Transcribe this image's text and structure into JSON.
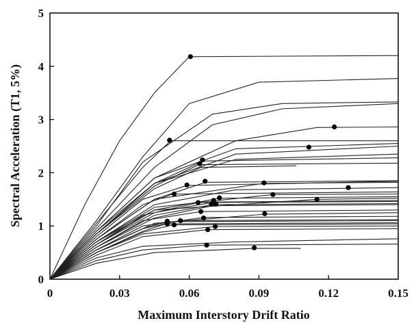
{
  "chart_data": {
    "type": "line",
    "title": "",
    "xlabel": "Maximum Interstory Drift Ratio",
    "ylabel": "Spectral Acceleration (T1, 5%)",
    "xlim": [
      0,
      0.15
    ],
    "ylim": [
      0,
      5
    ],
    "xticks": [
      "0",
      "0.03",
      "0.06",
      "0.09",
      "0.12",
      "0.15"
    ],
    "yticks": [
      "0",
      "1",
      "2",
      "3",
      "4",
      "5"
    ],
    "grid": false,
    "legend": "none",
    "colors": {
      "line": "#222222",
      "marker": "#000000",
      "axis": "#111111"
    },
    "series": [
      {
        "x": [
          0,
          0.015,
          0.03,
          0.045,
          0.06,
          0.15
        ],
        "y": [
          0,
          1.4,
          2.6,
          3.5,
          4.18,
          4.2
        ],
        "collapse": [
          0.0605,
          4.18
        ]
      },
      {
        "x": [
          0,
          0.02,
          0.04,
          0.06,
          0.09,
          0.15
        ],
        "y": [
          0,
          1.1,
          2.3,
          3.3,
          3.7,
          3.77
        ]
      },
      {
        "x": [
          0,
          0.02,
          0.04,
          0.07,
          0.1,
          0.15
        ],
        "y": [
          0,
          1.0,
          2.2,
          3.1,
          3.3,
          3.33
        ]
      },
      {
        "x": [
          0,
          0.02,
          0.045,
          0.07,
          0.1,
          0.15
        ],
        "y": [
          0,
          0.95,
          2.1,
          2.9,
          3.2,
          3.3
        ]
      },
      {
        "x": [
          0,
          0.02,
          0.045,
          0.08,
          0.115,
          0.15
        ],
        "y": [
          0,
          0.9,
          1.9,
          2.6,
          2.85,
          2.86
        ],
        "collapse": [
          0.1225,
          2.86
        ]
      },
      {
        "x": [
          0,
          0.02,
          0.04,
          0.052,
          0.15
        ],
        "y": [
          0,
          1.05,
          2.1,
          2.6,
          2.6
        ],
        "collapse": [
          0.0515,
          2.61
        ]
      },
      {
        "x": [
          0,
          0.02,
          0.045,
          0.08,
          0.15
        ],
        "y": [
          0,
          0.9,
          1.9,
          2.45,
          2.55
        ]
      },
      {
        "x": [
          0,
          0.02,
          0.045,
          0.08,
          0.15
        ],
        "y": [
          0,
          0.85,
          1.8,
          2.35,
          2.5
        ],
        "collapse": [
          0.1115,
          2.48
        ]
      },
      {
        "x": [
          0,
          0.02,
          0.045,
          0.08,
          0.15
        ],
        "y": [
          0,
          0.85,
          1.8,
          2.25,
          2.35
        ]
      },
      {
        "x": [
          0,
          0.02,
          0.045,
          0.066,
          0.15
        ],
        "y": [
          0,
          0.9,
          1.8,
          2.22,
          2.28
        ],
        "collapse": [
          0.0657,
          2.24
        ]
      },
      {
        "x": [
          0,
          0.02,
          0.045,
          0.064,
          0.15
        ],
        "y": [
          0,
          0.85,
          1.75,
          2.15,
          2.18
        ],
        "collapse": [
          0.0645,
          2.17
        ]
      },
      {
        "x": [
          0,
          0.02,
          0.045,
          0.065,
          0.106
        ],
        "y": [
          0,
          0.85,
          1.7,
          2.1,
          2.13
        ]
      },
      {
        "x": [
          0,
          0.02,
          0.04,
          0.059,
          0.15
        ],
        "y": [
          0,
          0.8,
          1.5,
          1.76,
          1.84
        ],
        "collapse": [
          0.059,
          1.77
        ]
      },
      {
        "x": [
          0,
          0.02,
          0.045,
          0.067,
          0.15
        ],
        "y": [
          0,
          0.75,
          1.5,
          1.82,
          1.85
        ],
        "collapse": [
          0.0668,
          1.84
        ]
      },
      {
        "x": [
          0,
          0.02,
          0.045,
          0.092,
          0.15
        ],
        "y": [
          0,
          0.75,
          1.5,
          1.8,
          1.82
        ],
        "collapse": [
          0.0922,
          1.81
        ]
      },
      {
        "x": [
          0,
          0.02,
          0.045,
          0.08,
          0.15
        ],
        "y": [
          0,
          0.7,
          1.4,
          1.68,
          1.72
        ],
        "collapse": [
          0.1285,
          1.72
        ]
      },
      {
        "x": [
          0,
          0.02,
          0.04,
          0.053,
          0.15
        ],
        "y": [
          0,
          0.75,
          1.4,
          1.6,
          1.64
        ],
        "collapse": [
          0.0535,
          1.6
        ]
      },
      {
        "x": [
          0,
          0.02,
          0.045,
          0.096,
          0.15
        ],
        "y": [
          0,
          0.7,
          1.35,
          1.59,
          1.6
        ],
        "collapse": [
          0.096,
          1.59
        ]
      },
      {
        "x": [
          0,
          0.02,
          0.045,
          0.073,
          0.15
        ],
        "y": [
          0,
          0.7,
          1.3,
          1.52,
          1.55
        ],
        "collapse": [
          0.073,
          1.53
        ]
      },
      {
        "x": [
          0,
          0.02,
          0.045,
          0.115,
          0.15
        ],
        "y": [
          0,
          0.65,
          1.3,
          1.5,
          1.52
        ],
        "collapse": [
          0.115,
          1.5
        ]
      },
      {
        "x": [
          0,
          0.02,
          0.045,
          0.071,
          0.15
        ],
        "y": [
          0,
          0.65,
          1.25,
          1.45,
          1.48
        ],
        "collapse": [
          0.0705,
          1.48
        ]
      },
      {
        "x": [
          0,
          0.02,
          0.04,
          0.064,
          0.15
        ],
        "y": [
          0,
          0.65,
          1.2,
          1.44,
          1.46
        ],
        "collapse": [
          0.0638,
          1.44
        ]
      },
      {
        "x": [
          0,
          0.02,
          0.045,
          0.07,
          0.15
        ],
        "y": [
          0,
          0.6,
          1.2,
          1.4,
          1.42
        ],
        "collapse": [
          0.0695,
          1.41
        ]
      },
      {
        "x": [
          0,
          0.02,
          0.045,
          0.07,
          0.15
        ],
        "y": [
          0,
          0.6,
          1.15,
          1.38,
          1.4
        ],
        "collapse": [
          0.0715,
          1.41
        ]
      },
      {
        "x": [
          0,
          0.02,
          0.04,
          0.065,
          0.15
        ],
        "y": [
          0,
          0.6,
          1.1,
          1.27,
          1.3
        ],
        "collapse": [
          0.065,
          1.27
        ]
      },
      {
        "x": [
          0,
          0.02,
          0.045,
          0.092,
          0.15
        ],
        "y": [
          0,
          0.55,
          1.05,
          1.22,
          1.25
        ],
        "collapse": [
          0.0925,
          1.23
        ]
      },
      {
        "x": [
          0,
          0.02,
          0.04,
          0.066,
          0.15
        ],
        "y": [
          0,
          0.55,
          1.0,
          1.16,
          1.18
        ],
        "collapse": [
          0.0662,
          1.15
        ]
      },
      {
        "x": [
          0,
          0.02,
          0.04,
          0.056,
          0.15
        ],
        "y": [
          0,
          0.55,
          0.95,
          1.1,
          1.12
        ],
        "collapse": [
          0.0562,
          1.1
        ]
      },
      {
        "x": [
          0,
          0.02,
          0.04,
          0.05,
          0.15
        ],
        "y": [
          0,
          0.55,
          0.95,
          1.08,
          1.1
        ],
        "collapse": [
          0.0505,
          1.09
        ]
      },
      {
        "x": [
          0,
          0.02,
          0.04,
          0.05,
          0.15
        ],
        "y": [
          0,
          0.5,
          0.9,
          1.04,
          1.06
        ],
        "collapse": [
          0.0505,
          1.04
        ]
      },
      {
        "x": [
          0,
          0.02,
          0.04,
          0.053,
          0.15
        ],
        "y": [
          0,
          0.5,
          0.88,
          1.02,
          1.04
        ],
        "collapse": [
          0.0535,
          1.02
        ]
      },
      {
        "x": [
          0,
          0.02,
          0.04,
          0.071,
          0.15
        ],
        "y": [
          0,
          0.5,
          0.85,
          0.99,
          1.0
        ],
        "collapse": [
          0.0712,
          0.99
        ]
      },
      {
        "x": [
          0,
          0.02,
          0.04,
          0.068,
          0.15
        ],
        "y": [
          0,
          0.45,
          0.8,
          0.93,
          0.95
        ],
        "collapse": [
          0.068,
          0.93
        ]
      },
      {
        "x": [
          0,
          0.02,
          0.04,
          0.08,
          0.15
        ],
        "y": [
          0,
          0.4,
          0.62,
          0.7,
          0.76
        ]
      },
      {
        "x": [
          0,
          0.02,
          0.04,
          0.067,
          0.15
        ],
        "y": [
          0,
          0.35,
          0.55,
          0.64,
          0.66
        ],
        "collapse": [
          0.0675,
          0.64
        ]
      },
      {
        "x": [
          0,
          0.02,
          0.045,
          0.088,
          0.108
        ],
        "y": [
          0,
          0.3,
          0.5,
          0.58,
          0.58
        ],
        "collapse": [
          0.088,
          0.59
        ]
      }
    ]
  }
}
